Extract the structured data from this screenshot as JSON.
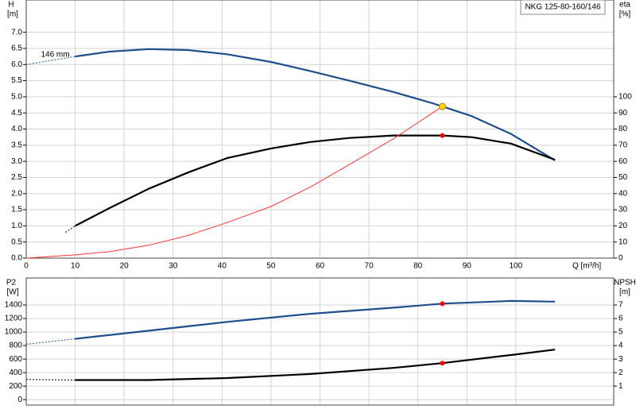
{
  "chart_data": [
    {
      "type": "line",
      "title": "NKG 125-80-160/146",
      "ylabel": "H",
      "yunit": "[m]",
      "y2label": "eta",
      "y2unit": "[%]",
      "xlabel": "Q [m³/h]",
      "annotation": {
        "text": "146 mm",
        "x": 3,
        "y": 6.3
      },
      "xlim": [
        0,
        120
      ],
      "xticks": [
        0,
        10,
        20,
        30,
        40,
        50,
        60,
        70,
        80,
        90,
        100
      ],
      "ylim": [
        0,
        8
      ],
      "yticks": [
        {
          "value": 0,
          "label": "0.0"
        },
        0.5,
        {
          "value": 1,
          "label": "1.0"
        },
        1.5,
        {
          "value": 2,
          "label": "2.0"
        },
        2.5,
        {
          "value": 3,
          "label": "3.0"
        },
        3.5,
        {
          "value": 4,
          "label": "4.0"
        },
        4.5,
        {
          "value": 5,
          "label": "5.0"
        },
        5.5,
        {
          "value": 6,
          "label": "6.0"
        },
        6.5,
        {
          "value": 7,
          "label": "7.0"
        }
      ],
      "y2lim": [
        0,
        160
      ],
      "y2ticks": [
        0,
        10,
        20,
        30,
        40,
        50,
        60,
        70,
        80,
        90,
        100
      ],
      "grid": true,
      "series": [
        {
          "color": "#1f4e8c",
          "style": "dashed",
          "width": 1,
          "x": [
            0,
            10
          ],
          "values": [
            6.0,
            6.25
          ]
        },
        {
          "color": "#1f4e8c",
          "style": "solid",
          "width": 2.2,
          "x": [
            10,
            17,
            25,
            33,
            41,
            50,
            58,
            66,
            75,
            83,
            85,
            91,
            99,
            108
          ],
          "values": [
            6.25,
            6.4,
            6.48,
            6.45,
            6.32,
            6.08,
            5.8,
            5.5,
            5.15,
            4.8,
            4.7,
            4.4,
            3.85,
            3.03
          ]
        },
        {
          "color": "#000000",
          "style": "dashed",
          "width": 1,
          "axis": "y2",
          "x": [
            8,
            10
          ],
          "values": [
            16,
            20
          ]
        },
        {
          "color": "#000000",
          "style": "solid",
          "width": 2.2,
          "axis": "y2",
          "x": [
            10,
            17,
            25,
            33,
            41,
            50,
            58,
            66,
            75,
            85,
            91,
            99,
            108
          ],
          "values": [
            20,
            31,
            43,
            53,
            62,
            68,
            72,
            74.5,
            76,
            76,
            75,
            71,
            61
          ]
        },
        {
          "color": "#ff3333",
          "style": "solid",
          "width": 1,
          "x": [
            0,
            10,
            17,
            25,
            33,
            41,
            50,
            58,
            66,
            75,
            85
          ],
          "values": [
            0,
            0.1,
            0.2,
            0.4,
            0.7,
            1.1,
            1.6,
            2.2,
            2.9,
            3.7,
            4.7
          ]
        }
      ],
      "markers": [
        {
          "x": 85,
          "y": 4.7,
          "color": "#ffd700"
        },
        {
          "x": 85,
          "y": 76,
          "color": "#ff0000",
          "axis": "y2"
        }
      ]
    },
    {
      "type": "line",
      "ylabel": "P2",
      "yunit": "[W]",
      "y2label": "NPSH",
      "y2unit": "[m]",
      "xlim": [
        0,
        120
      ],
      "ylim": [
        -80,
        1800
      ],
      "yticks": [
        0,
        200,
        400,
        600,
        800,
        1000,
        1200,
        1400
      ],
      "y2lim": [
        -0.4,
        9
      ],
      "y2ticks": [
        1,
        2,
        3,
        4,
        5,
        6,
        7
      ],
      "grid": true,
      "series": [
        {
          "color": "#1f4e8c",
          "style": "dashed",
          "width": 1,
          "x": [
            0,
            10
          ],
          "values": [
            820,
            900
          ]
        },
        {
          "color": "#1f4e8c",
          "style": "solid",
          "width": 2.2,
          "x": [
            10,
            25,
            41,
            58,
            75,
            85,
            99,
            108
          ],
          "values": [
            900,
            1020,
            1150,
            1270,
            1360,
            1420,
            1460,
            1450
          ]
        },
        {
          "color": "#000000",
          "style": "dashed",
          "width": 1,
          "axis": "y2",
          "x": [
            0,
            10
          ],
          "values": [
            1.5,
            1.45
          ]
        },
        {
          "color": "#000000",
          "style": "solid",
          "width": 2.2,
          "axis": "y2",
          "x": [
            10,
            25,
            41,
            58,
            75,
            85,
            99,
            108
          ],
          "values": [
            1.45,
            1.45,
            1.6,
            1.9,
            2.35,
            2.7,
            3.3,
            3.7
          ]
        }
      ],
      "markers": [
        {
          "x": 85,
          "y": 1420,
          "color": "#ff0000"
        },
        {
          "x": 85,
          "y": 2.7,
          "color": "#ff0000",
          "axis": "y2"
        }
      ]
    }
  ]
}
